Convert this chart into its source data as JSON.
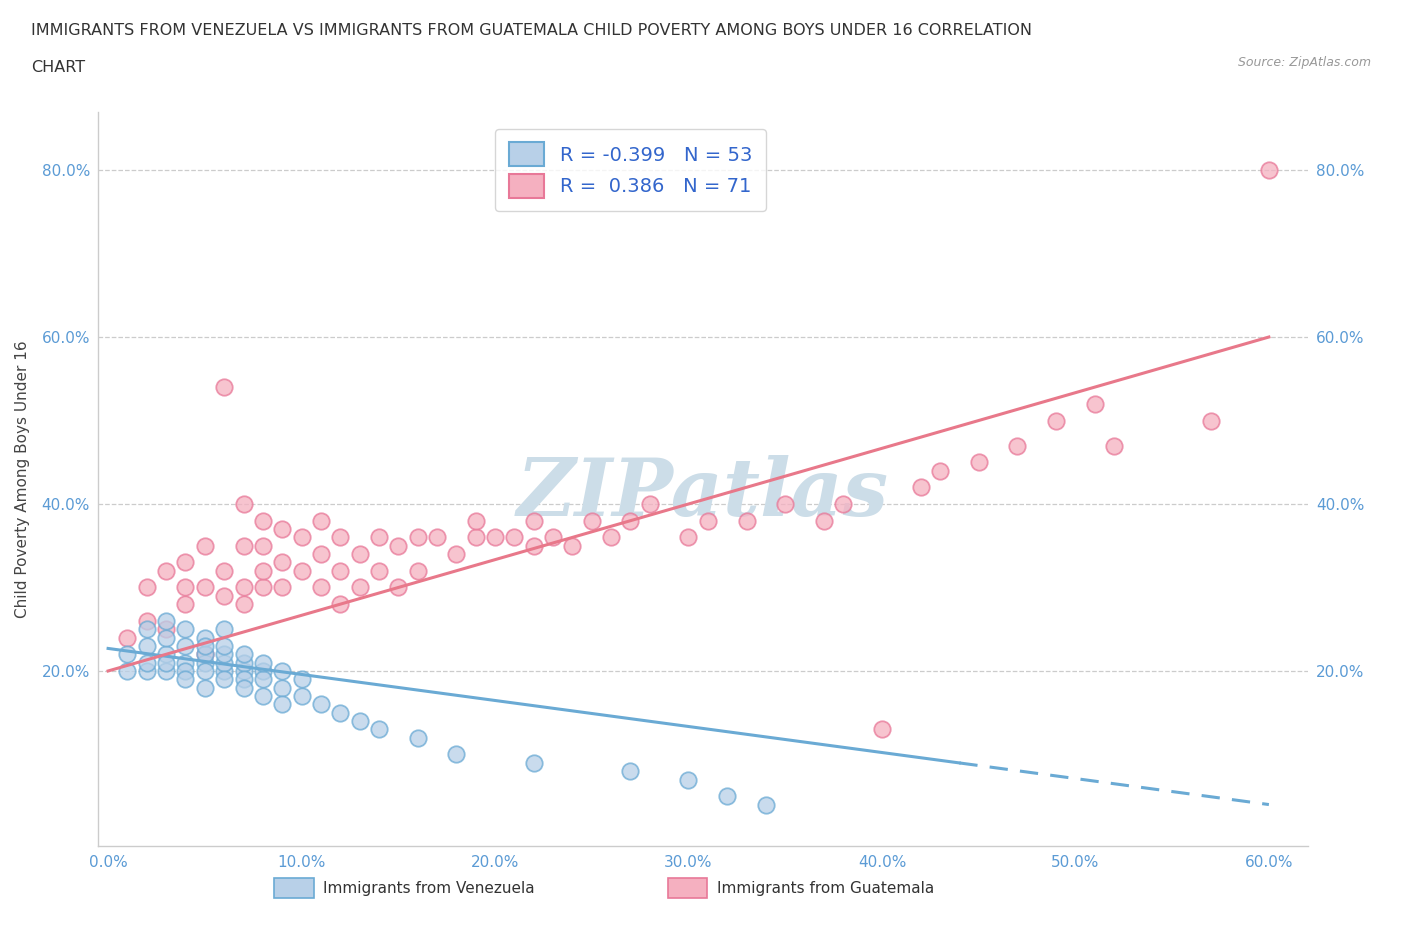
{
  "title_line1": "IMMIGRANTS FROM VENEZUELA VS IMMIGRANTS FROM GUATEMALA CHILD POVERTY AMONG BOYS UNDER 16 CORRELATION",
  "title_line2": "CHART",
  "source": "Source: ZipAtlas.com",
  "ylabel": "Child Poverty Among Boys Under 16",
  "xlim": [
    -0.005,
    0.62
  ],
  "ylim": [
    -0.01,
    0.87
  ],
  "x_ticks": [
    0.0,
    0.1,
    0.2,
    0.3,
    0.4,
    0.5,
    0.6
  ],
  "x_tick_labels": [
    "0.0%",
    "10.0%",
    "20.0%",
    "30.0%",
    "40.0%",
    "50.0%",
    "60.0%"
  ],
  "y_ticks": [
    0.0,
    0.2,
    0.4,
    0.6,
    0.8
  ],
  "y_tick_labels": [
    "",
    "20.0%",
    "40.0%",
    "60.0%",
    "80.0%"
  ],
  "r_venezuela": -0.399,
  "n_venezuela": 53,
  "r_guatemala": 0.386,
  "n_guatemala": 71,
  "venezuela_color": "#b8d0e8",
  "guatemala_color": "#f5b0c0",
  "venezuela_edge_color": "#6aaad4",
  "guatemala_edge_color": "#e87898",
  "venezuela_line_color": "#6aaad4",
  "guatemala_line_color": "#e8788a",
  "watermark": "ZIPatlas",
  "watermark_color": "#ccdde8",
  "venezuela_x": [
    0.01,
    0.01,
    0.02,
    0.02,
    0.02,
    0.02,
    0.03,
    0.03,
    0.03,
    0.03,
    0.03,
    0.04,
    0.04,
    0.04,
    0.04,
    0.04,
    0.05,
    0.05,
    0.05,
    0.05,
    0.05,
    0.05,
    0.06,
    0.06,
    0.06,
    0.06,
    0.06,
    0.06,
    0.07,
    0.07,
    0.07,
    0.07,
    0.07,
    0.08,
    0.08,
    0.08,
    0.08,
    0.09,
    0.09,
    0.09,
    0.1,
    0.1,
    0.11,
    0.12,
    0.13,
    0.14,
    0.16,
    0.18,
    0.22,
    0.27,
    0.3,
    0.32,
    0.34
  ],
  "venezuela_y": [
    0.2,
    0.22,
    0.2,
    0.23,
    0.21,
    0.25,
    0.22,
    0.2,
    0.24,
    0.21,
    0.26,
    0.21,
    0.2,
    0.23,
    0.25,
    0.19,
    0.21,
    0.2,
    0.22,
    0.24,
    0.18,
    0.23,
    0.2,
    0.21,
    0.19,
    0.22,
    0.25,
    0.23,
    0.2,
    0.21,
    0.19,
    0.22,
    0.18,
    0.2,
    0.19,
    0.21,
    0.17,
    0.18,
    0.2,
    0.16,
    0.17,
    0.19,
    0.16,
    0.15,
    0.14,
    0.13,
    0.12,
    0.1,
    0.09,
    0.08,
    0.07,
    0.05,
    0.04
  ],
  "guatemala_x": [
    0.01,
    0.02,
    0.02,
    0.03,
    0.03,
    0.04,
    0.04,
    0.04,
    0.05,
    0.05,
    0.05,
    0.06,
    0.06,
    0.06,
    0.07,
    0.07,
    0.07,
    0.07,
    0.08,
    0.08,
    0.08,
    0.08,
    0.09,
    0.09,
    0.09,
    0.1,
    0.1,
    0.11,
    0.11,
    0.11,
    0.12,
    0.12,
    0.12,
    0.13,
    0.13,
    0.14,
    0.14,
    0.15,
    0.15,
    0.16,
    0.16,
    0.17,
    0.18,
    0.19,
    0.19,
    0.2,
    0.21,
    0.22,
    0.22,
    0.23,
    0.24,
    0.25,
    0.26,
    0.27,
    0.28,
    0.3,
    0.31,
    0.33,
    0.35,
    0.37,
    0.38,
    0.4,
    0.42,
    0.43,
    0.45,
    0.47,
    0.49,
    0.51,
    0.52,
    0.57,
    0.6
  ],
  "guatemala_y": [
    0.24,
    0.26,
    0.3,
    0.25,
    0.32,
    0.28,
    0.3,
    0.33,
    0.22,
    0.3,
    0.35,
    0.29,
    0.32,
    0.54,
    0.28,
    0.3,
    0.35,
    0.4,
    0.3,
    0.32,
    0.35,
    0.38,
    0.3,
    0.33,
    0.37,
    0.32,
    0.36,
    0.3,
    0.34,
    0.38,
    0.28,
    0.32,
    0.36,
    0.3,
    0.34,
    0.32,
    0.36,
    0.3,
    0.35,
    0.32,
    0.36,
    0.36,
    0.34,
    0.36,
    0.38,
    0.36,
    0.36,
    0.35,
    0.38,
    0.36,
    0.35,
    0.38,
    0.36,
    0.38,
    0.4,
    0.36,
    0.38,
    0.38,
    0.4,
    0.38,
    0.4,
    0.13,
    0.42,
    0.44,
    0.45,
    0.47,
    0.5,
    0.52,
    0.47,
    0.5,
    0.8
  ],
  "ven_line_x0": 0.0,
  "ven_line_y0": 0.227,
  "ven_line_x1": 0.6,
  "ven_line_y1": 0.04,
  "gua_line_x0": 0.0,
  "gua_line_y0": 0.2,
  "gua_line_x1": 0.6,
  "gua_line_y1": 0.6
}
